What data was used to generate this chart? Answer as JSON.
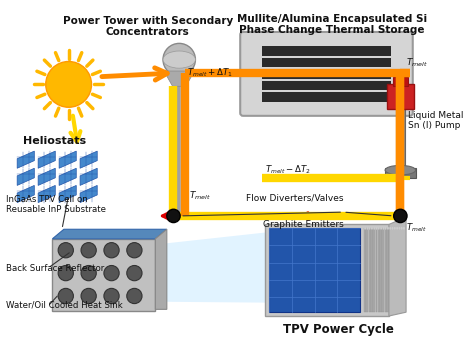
{
  "bg_color": "#ffffff",
  "label_power_tower": "Power Tower with Secondary\nConcentrators",
  "label_thermal_storage": "Mullite/Alumina Encapsulated Si\nPhase Change Thermal Storage",
  "label_heliostats": "Heliostats",
  "label_ingaas": "InGaAs TPV Cell on\nReusable InP Substrate",
  "label_back_surface": "Back Surface Reflector",
  "label_heat_sink": "Water/Oil Cooled Heat Sink",
  "label_liquid_metal": "Liquid Metal\nSn (l) Pump",
  "label_flow_div": "Flow Diverters/Valves",
  "label_graphite": "Graphite Emitters",
  "label_tpv": "TPV Power Cycle",
  "orange_color": "#FF8C00",
  "yellow_color": "#FFD700",
  "red_color": "#DD0000",
  "pipe_lw": 6
}
